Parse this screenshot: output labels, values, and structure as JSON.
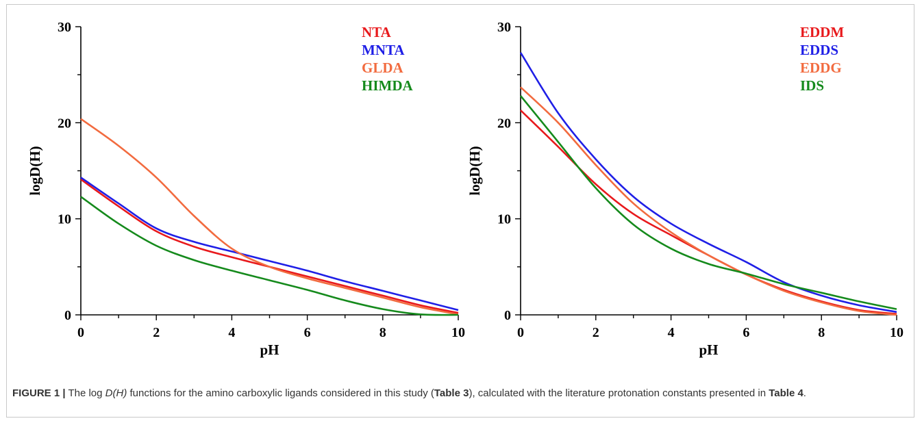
{
  "chart_data": [
    {
      "type": "line",
      "xlabel": "pH",
      "ylabel": "logD(H)",
      "xlim": [
        0,
        10
      ],
      "ylim": [
        0,
        30
      ],
      "xticks": [
        "0",
        "2",
        "4",
        "6",
        "8",
        "10"
      ],
      "yticks": [
        "0",
        "10",
        "20",
        "30"
      ],
      "legend_position": "top-right",
      "x": [
        0,
        1,
        2,
        3,
        4,
        5,
        6,
        7,
        8,
        9,
        10
      ],
      "series": [
        {
          "name": "NTA",
          "color": "#e8191c",
          "values": [
            14.1,
            11.3,
            8.7,
            7.1,
            6.0,
            5.0,
            4.0,
            3.0,
            2.0,
            1.0,
            0.2
          ]
        },
        {
          "name": "MNTA",
          "color": "#1f1fe6",
          "values": [
            14.3,
            11.6,
            9.0,
            7.6,
            6.6,
            5.6,
            4.6,
            3.5,
            2.5,
            1.5,
            0.5
          ]
        },
        {
          "name": "GLDA",
          "color": "#f26b3f",
          "values": [
            20.4,
            17.6,
            14.3,
            10.3,
            6.9,
            5.0,
            3.8,
            2.8,
            1.8,
            0.8,
            0.05
          ]
        },
        {
          "name": "HIMDA",
          "color": "#158a1c",
          "values": [
            12.3,
            9.5,
            7.2,
            5.7,
            4.6,
            3.6,
            2.6,
            1.5,
            0.6,
            0.05,
            0.0
          ]
        }
      ]
    },
    {
      "type": "line",
      "xlabel": "pH",
      "ylabel": "logD(H)",
      "xlim": [
        0,
        10
      ],
      "ylim": [
        0,
        30
      ],
      "xticks": [
        "0",
        "2",
        "4",
        "6",
        "8",
        "10"
      ],
      "yticks": [
        "0",
        "10",
        "20",
        "30"
      ],
      "legend_position": "top-right",
      "x": [
        0,
        1,
        2,
        3,
        4,
        5,
        6,
        7,
        8,
        9,
        10
      ],
      "series": [
        {
          "name": "EDDM",
          "color": "#e8191c",
          "values": [
            21.3,
            17.5,
            13.6,
            10.5,
            8.3,
            6.2,
            4.2,
            2.6,
            1.4,
            0.5,
            0.1
          ]
        },
        {
          "name": "EDDS",
          "color": "#1f1fe6",
          "values": [
            27.3,
            21.0,
            16.2,
            12.3,
            9.5,
            7.4,
            5.5,
            3.4,
            2.0,
            1.0,
            0.3
          ]
        },
        {
          "name": "EDDG",
          "color": "#f26b3f",
          "values": [
            23.7,
            20.0,
            15.6,
            11.6,
            8.6,
            6.2,
            4.2,
            2.5,
            1.3,
            0.4,
            0.0
          ]
        },
        {
          "name": "IDS",
          "color": "#158a1c",
          "values": [
            22.8,
            18.0,
            13.2,
            9.4,
            6.9,
            5.3,
            4.3,
            3.2,
            2.3,
            1.4,
            0.6
          ]
        }
      ]
    }
  ],
  "caption": {
    "figure_label": "FIGURE 1 |",
    "text_1": " The log ",
    "italic_1": "D(H)",
    "text_2": " functions for the amino carboxylic ligands considered in this study (",
    "ref_1": "Table 3",
    "text_3": "), calculated with the literature protonation constants presented in ",
    "ref_2": "Table 4",
    "text_4": "."
  }
}
